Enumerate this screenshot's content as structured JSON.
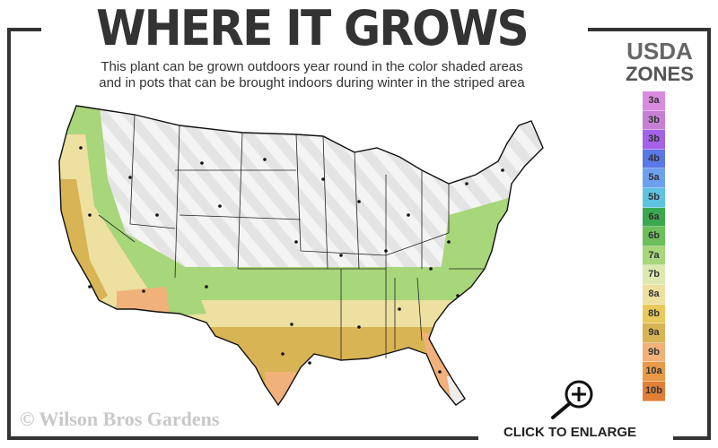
{
  "header": {
    "title": "WHERE IT GROWS",
    "subtitle_line1": "This plant can be grown outdoors year round in the color shaded areas",
    "subtitle_line2": "and in pots that can be brought indoors during winter in the striped area"
  },
  "legend": {
    "title_line1": "USDA",
    "title_line2": "ZONES",
    "zones": [
      {
        "label": "3a",
        "color": "#d98be0"
      },
      {
        "label": "3b",
        "color": "#c77fd6"
      },
      {
        "label": "3b",
        "color": "#a363e8"
      },
      {
        "label": "4b",
        "color": "#5a78e6"
      },
      {
        "label": "5a",
        "color": "#6ea0f0"
      },
      {
        "label": "5b",
        "color": "#5ec3e0"
      },
      {
        "label": "6a",
        "color": "#3aa84e"
      },
      {
        "label": "6b",
        "color": "#6cbf5a"
      },
      {
        "label": "7a",
        "color": "#a8d67a"
      },
      {
        "label": "7b",
        "color": "#dde9b0"
      },
      {
        "label": "8a",
        "color": "#ede0a0"
      },
      {
        "label": "8b",
        "color": "#e8c95a"
      },
      {
        "label": "9a",
        "color": "#d9b455"
      },
      {
        "label": "9b",
        "color": "#f0b27a"
      },
      {
        "label": "10a",
        "color": "#e89a48"
      },
      {
        "label": "10b",
        "color": "#e07f35"
      }
    ]
  },
  "map": {
    "icon": "us-hardiness-zone-map"
  },
  "footer": {
    "copyright": "© Wilson Bros Gardens",
    "enlarge_label": "CLICK TO ENLARGE",
    "enlarge_icon": "zoom-in-icon"
  }
}
